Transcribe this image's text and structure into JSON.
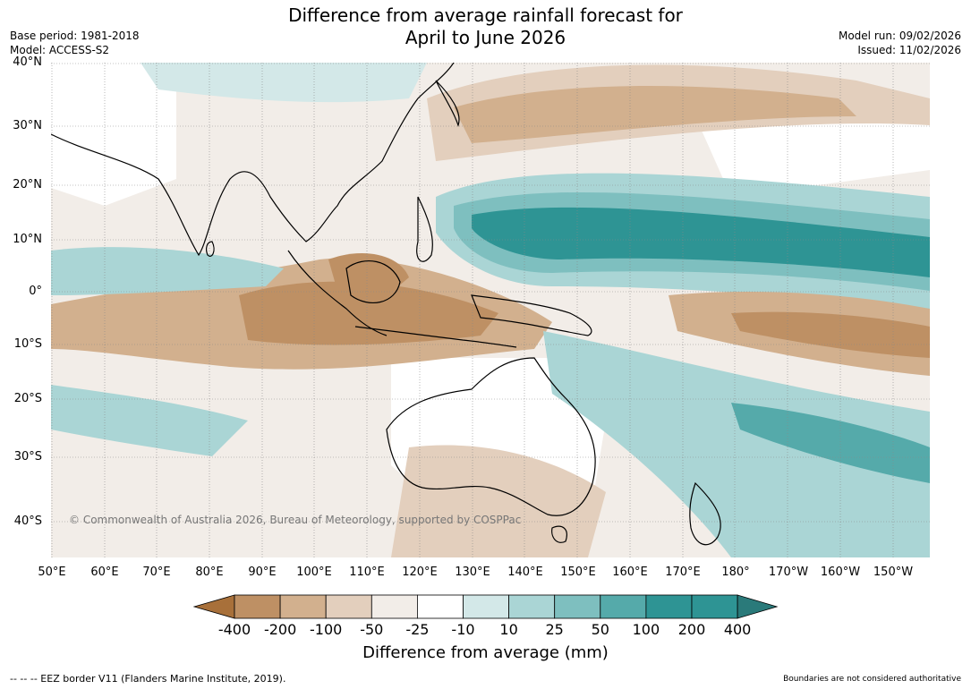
{
  "title_line1": "Difference from average rainfall forecast for",
  "title_line2": "April to June 2026",
  "base_period": "Base period: 1981-2018",
  "model": "Model: ACCESS-S2",
  "model_run": "Model run: 09/02/2026",
  "issued": "Issued: 11/02/2026",
  "copyright": "© Commonwealth of Australia 2026, Bureau of Meteorology, supported by COSPPac",
  "lat_labels": [
    "40°N",
    "30°N",
    "20°N",
    "10°N",
    "0°",
    "10°S",
    "20°S",
    "30°S",
    "40°S"
  ],
  "lon_labels": [
    "50°E",
    "60°E",
    "70°E",
    "80°E",
    "90°E",
    "100°E",
    "110°E",
    "120°E",
    "130°E",
    "140°E",
    "150°E",
    "160°E",
    "170°E",
    "180°",
    "170°W",
    "160°W",
    "150°W"
  ],
  "colorbar": {
    "title": "Difference from average (mm)",
    "ticks": [
      "-400",
      "-200",
      "-100",
      "-50",
      "-25",
      "-10",
      "10",
      "25",
      "50",
      "100",
      "200",
      "400"
    ],
    "colors": [
      "#a8703a",
      "#be9064",
      "#d2b08e",
      "#e3cfbd",
      "#f2ede8",
      "#ffffff",
      "#d3e8e8",
      "#aad5d5",
      "#7ebfbf",
      "#55aaaa",
      "#2e9494",
      "#2a7a7a"
    ]
  },
  "colors": {
    "dry_strong": "#be9064",
    "dry_mid": "#d2b08e",
    "dry_light": "#e3cfbd",
    "dry_faint": "#f2ede8",
    "wet_faint": "#d3e8e8",
    "wet_light": "#aad5d5",
    "wet_mid": "#7ebfbf",
    "wet_strong": "#55aaaa",
    "wet_max": "#2e9494"
  },
  "footer_left": "--  --  -- EEZ border V11 (Flanders Marine Institute, 2019).",
  "footer_right": "Boundaries are not considered authoritative"
}
